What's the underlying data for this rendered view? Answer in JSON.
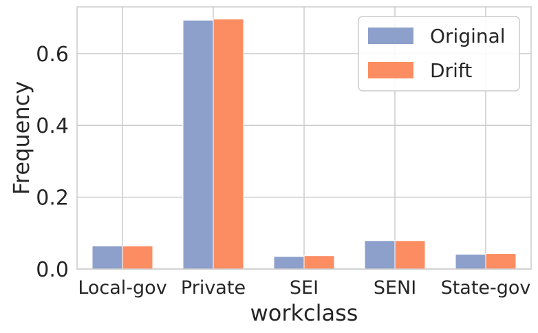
{
  "chart_data": {
    "type": "bar",
    "categories": [
      "Local-gov",
      "Private",
      "SEI",
      "SENI",
      "State-gov"
    ],
    "series": [
      {
        "name": "Original",
        "values": [
          0.064,
          0.693,
          0.035,
          0.079,
          0.041
        ]
      },
      {
        "name": "Drift",
        "values": [
          0.064,
          0.696,
          0.037,
          0.079,
          0.043
        ]
      }
    ],
    "colors": {
      "Original": "#8da0cb",
      "Drift": "#fc8d62"
    },
    "xlabel": "workclass",
    "ylabel": "Frequency",
    "ylim": [
      0.0,
      0.73
    ],
    "yticks": [
      0.0,
      0.2,
      0.4,
      0.6
    ],
    "ytick_labels": [
      "0.0",
      "0.2",
      "0.4",
      "0.6"
    ],
    "grid": true,
    "legend_position": "top-right"
  }
}
